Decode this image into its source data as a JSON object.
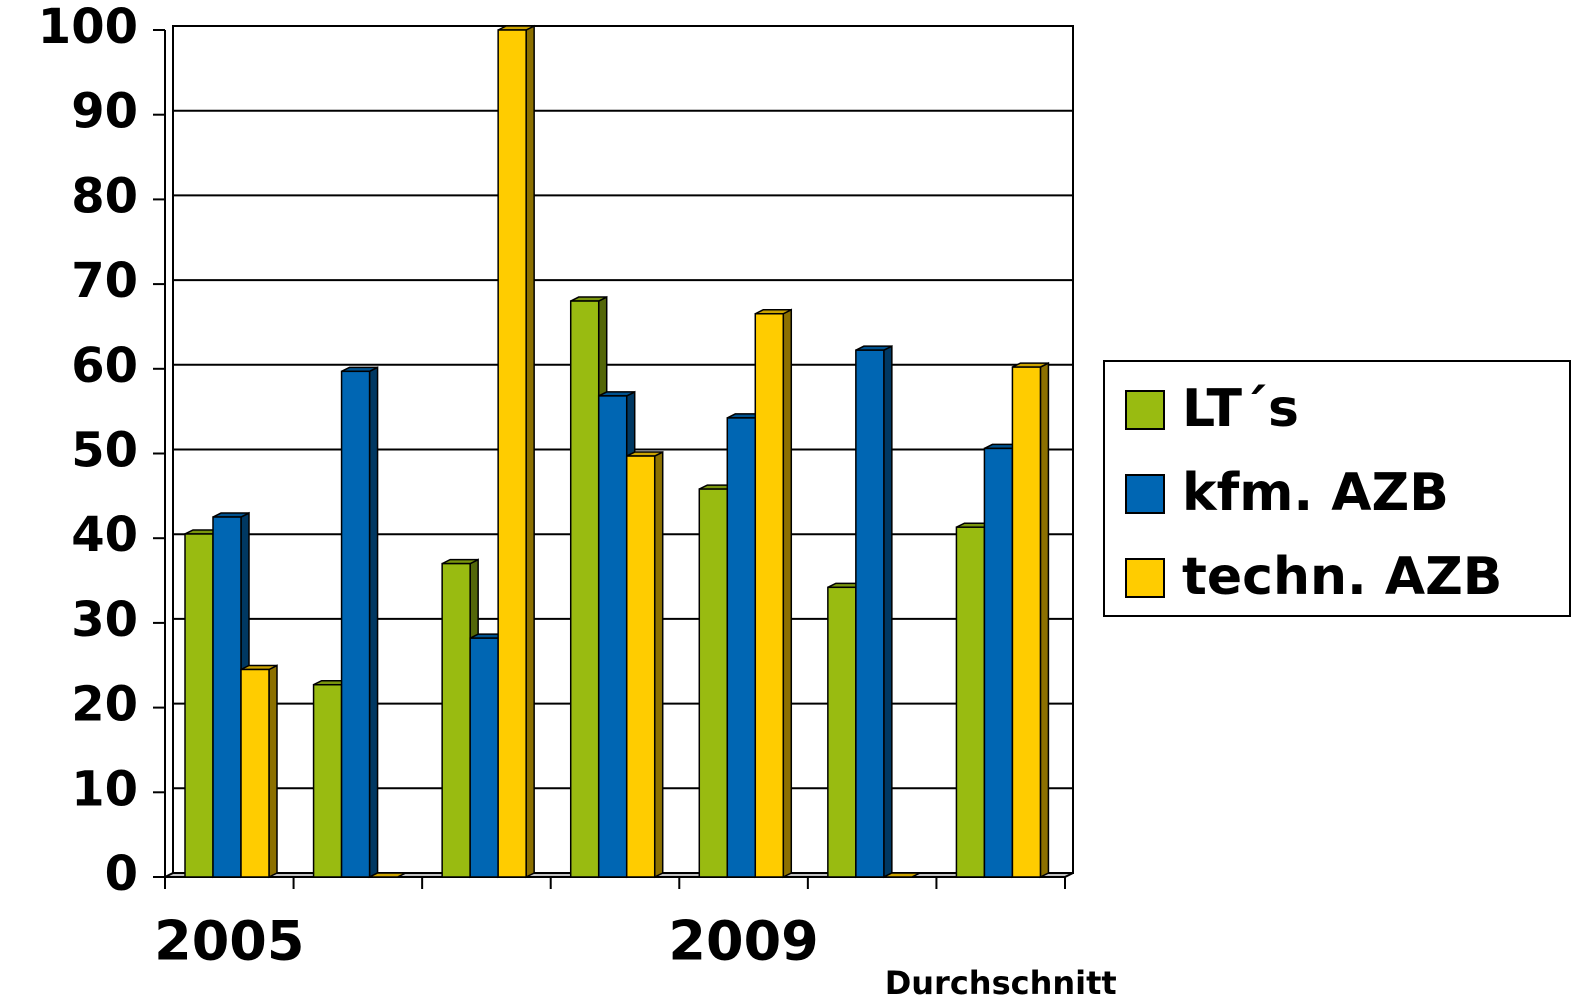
{
  "chart_data": {
    "type": "bar3d",
    "categories": [
      "2005",
      null,
      null,
      null,
      "2009",
      null,
      "Durchschnitt"
    ],
    "series": [
      {
        "name": "LT´s",
        "color": "#99bb11",
        "values": [
          40.5,
          22.7,
          37,
          68,
          45.8,
          34.2,
          41.3
        ]
      },
      {
        "name": "kfm. AZB",
        "color": "#0066b3",
        "values": [
          42.5,
          59.7,
          28.2,
          56.8,
          54.2,
          62.2,
          50.6
        ]
      },
      {
        "name": "techn. AZB",
        "color": "#ffcc00",
        "values": [
          24.5,
          0,
          100,
          49.7,
          66.5,
          0,
          60.2
        ]
      }
    ],
    "ylim": [
      0,
      100
    ],
    "yticks": [
      0,
      10,
      20,
      30,
      40,
      50,
      60,
      70,
      80,
      90,
      100
    ],
    "grid": true,
    "legend": "right"
  }
}
